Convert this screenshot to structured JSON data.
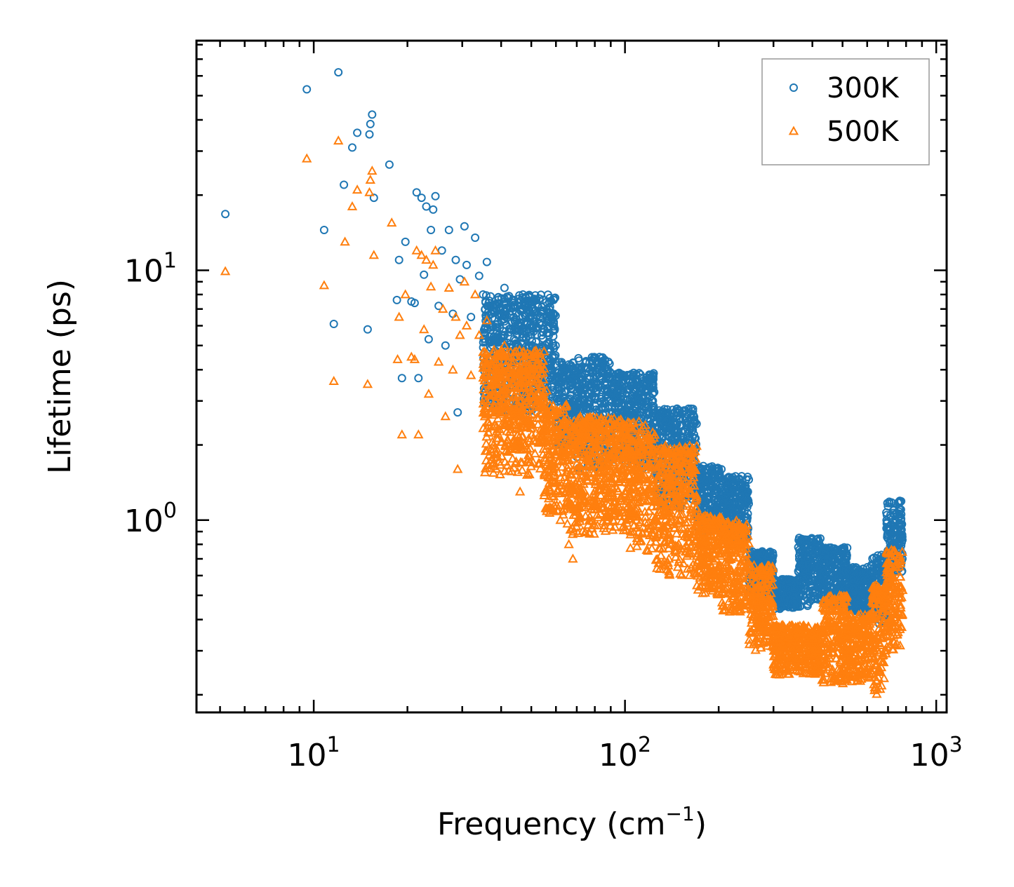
{
  "chart_data": {
    "type": "scatter",
    "xlabel": "Frequency",
    "xlabel_unit": "(cm",
    "xlabel_unit_sup": "−1",
    "xlabel_unit_close": ")",
    "ylabel": "Lifetime (ps)",
    "xscale": "log",
    "yscale": "log",
    "xlim": [
      4.2,
      1080
    ],
    "ylim": [
      0.17,
      83
    ],
    "x_ticks": [
      {
        "value": 10,
        "base": "10",
        "exp": "1"
      },
      {
        "value": 100,
        "base": "10",
        "exp": "2"
      },
      {
        "value": 1000,
        "base": "10",
        "exp": "3"
      }
    ],
    "y_ticks": [
      {
        "value": 1,
        "base": "10",
        "exp": "0"
      },
      {
        "value": 10,
        "base": "10",
        "exp": "1"
      }
    ],
    "legend_position": "top-right",
    "series": [
      {
        "name": "300K",
        "marker": "circle",
        "color": "#1f77b4",
        "points": [
          [
            5.2,
            16.8
          ],
          [
            9.5,
            53.0
          ],
          [
            10.8,
            14.5
          ],
          [
            11.6,
            6.1
          ],
          [
            12.0,
            62.0
          ],
          [
            12.5,
            22.0
          ],
          [
            13.3,
            31.0
          ],
          [
            13.8,
            35.5
          ],
          [
            14.9,
            5.8
          ],
          [
            15.1,
            35.0
          ],
          [
            15.2,
            38.5
          ],
          [
            15.4,
            42.0
          ],
          [
            15.6,
            19.5
          ],
          [
            17.5,
            26.5
          ],
          [
            18.5,
            7.6
          ],
          [
            18.8,
            11.0
          ],
          [
            19.2,
            3.7
          ],
          [
            19.7,
            13.0
          ],
          [
            20.6,
            7.5
          ],
          [
            21.1,
            7.4
          ],
          [
            21.4,
            20.5
          ],
          [
            21.7,
            3.7
          ],
          [
            22.2,
            19.5
          ],
          [
            22.6,
            9.6
          ],
          [
            23.0,
            18.0
          ],
          [
            23.4,
            5.3
          ],
          [
            23.8,
            14.5
          ],
          [
            24.2,
            17.5
          ],
          [
            24.6,
            19.8
          ],
          [
            25.2,
            7.2
          ],
          [
            25.8,
            12.0
          ],
          [
            26.5,
            5.0
          ],
          [
            27.2,
            14.5
          ],
          [
            28.0,
            6.7
          ],
          [
            28.6,
            11.0
          ],
          [
            29.0,
            2.7
          ],
          [
            29.5,
            9.2
          ],
          [
            30.5,
            15.0
          ],
          [
            31.0,
            10.5
          ],
          [
            32.0,
            6.5
          ],
          [
            33.0,
            13.5
          ],
          [
            34.0,
            9.5
          ],
          [
            35.0,
            8.0
          ],
          [
            36.0,
            10.8
          ],
          [
            37.5,
            7.2
          ],
          [
            38.0,
            2.9
          ],
          [
            39.5,
            6.6
          ],
          [
            41.0,
            8.5
          ],
          [
            42.0,
            3.6
          ],
          [
            44.0,
            5.3
          ],
          [
            46.0,
            4.9
          ],
          [
            47.0,
            8.0
          ],
          [
            49.0,
            4.3
          ],
          [
            52.0,
            4.9
          ],
          [
            56.0,
            5.6
          ],
          [
            60.0,
            3.6
          ],
          [
            64.0,
            4.1
          ]
        ],
        "bands": [
          {
            "x_from": 35,
            "x_to": 60,
            "y_low": 2.7,
            "y_high": 8.0
          },
          {
            "x_from": 60,
            "x_to": 70,
            "y_low": 2.0,
            "y_high": 4.3
          },
          {
            "x_from": 70,
            "x_to": 90,
            "y_low": 1.6,
            "y_high": 4.5
          },
          {
            "x_from": 90,
            "x_to": 125,
            "y_low": 1.6,
            "y_high": 3.9
          },
          {
            "x_from": 125,
            "x_to": 170,
            "y_low": 1.1,
            "y_high": 2.8
          },
          {
            "x_from": 170,
            "x_to": 205,
            "y_low": 0.9,
            "y_high": 1.65
          },
          {
            "x_from": 205,
            "x_to": 250,
            "y_low": 0.8,
            "y_high": 1.5
          },
          {
            "x_from": 250,
            "x_to": 300,
            "y_low": 0.5,
            "y_high": 0.75
          },
          {
            "x_from": 300,
            "x_to": 360,
            "y_low": 0.44,
            "y_high": 0.58
          },
          {
            "x_from": 360,
            "x_to": 430,
            "y_low": 0.45,
            "y_high": 0.85
          },
          {
            "x_from": 430,
            "x_to": 520,
            "y_low": 0.45,
            "y_high": 0.78
          },
          {
            "x_from": 520,
            "x_to": 620,
            "y_low": 0.42,
            "y_high": 0.65
          },
          {
            "x_from": 620,
            "x_to": 690,
            "y_low": 0.38,
            "y_high": 0.73
          },
          {
            "x_from": 690,
            "x_to": 780,
            "y_low": 0.6,
            "y_high": 1.2
          }
        ]
      },
      {
        "name": "500K",
        "marker": "triangle",
        "color": "#ff7f0e",
        "points": [
          [
            5.2,
            9.9
          ],
          [
            9.5,
            28.0
          ],
          [
            10.8,
            8.7
          ],
          [
            11.6,
            3.6
          ],
          [
            12.0,
            33.0
          ],
          [
            12.6,
            13.0
          ],
          [
            13.3,
            18.0
          ],
          [
            13.8,
            21.0
          ],
          [
            14.9,
            3.5
          ],
          [
            15.1,
            20.5
          ],
          [
            15.2,
            23.0
          ],
          [
            15.4,
            25.0
          ],
          [
            15.6,
            11.5
          ],
          [
            17.8,
            15.5
          ],
          [
            18.6,
            4.4
          ],
          [
            18.8,
            6.5
          ],
          [
            19.2,
            2.2
          ],
          [
            19.7,
            8.0
          ],
          [
            20.6,
            4.5
          ],
          [
            21.1,
            4.4
          ],
          [
            21.4,
            12.0
          ],
          [
            21.7,
            2.2
          ],
          [
            22.2,
            11.5
          ],
          [
            22.6,
            5.8
          ],
          [
            23.0,
            11.0
          ],
          [
            23.4,
            3.2
          ],
          [
            23.8,
            8.6
          ],
          [
            24.2,
            10.5
          ],
          [
            24.6,
            12.0
          ],
          [
            25.2,
            4.3
          ],
          [
            26.0,
            7.0
          ],
          [
            26.5,
            2.6
          ],
          [
            27.2,
            8.5
          ],
          [
            28.0,
            4.0
          ],
          [
            28.6,
            6.5
          ],
          [
            29.0,
            1.6
          ],
          [
            29.5,
            5.5
          ],
          [
            30.5,
            9.0
          ],
          [
            31.0,
            6.0
          ],
          [
            32.0,
            3.8
          ],
          [
            33.0,
            8.0
          ],
          [
            34.0,
            5.5
          ],
          [
            35.0,
            4.7
          ],
          [
            36.0,
            6.3
          ],
          [
            37.5,
            4.2
          ],
          [
            38.0,
            1.7
          ],
          [
            39.5,
            3.9
          ],
          [
            41.0,
            5.0
          ],
          [
            42.0,
            2.1
          ],
          [
            44.0,
            3.1
          ],
          [
            46.0,
            1.3
          ],
          [
            47.0,
            4.7
          ],
          [
            49.0,
            2.5
          ],
          [
            52.0,
            2.9
          ],
          [
            56.0,
            3.3
          ],
          [
            60.0,
            2.1
          ],
          [
            62.0,
            1.0
          ],
          [
            66.0,
            0.8
          ],
          [
            68.0,
            0.7
          ]
        ],
        "bands": [
          {
            "x_from": 35,
            "x_to": 55,
            "y_low": 1.5,
            "y_high": 4.8
          },
          {
            "x_from": 55,
            "x_to": 65,
            "y_low": 1.05,
            "y_high": 2.9
          },
          {
            "x_from": 65,
            "x_to": 80,
            "y_low": 0.85,
            "y_high": 2.6
          },
          {
            "x_from": 80,
            "x_to": 100,
            "y_low": 0.9,
            "y_high": 2.6
          },
          {
            "x_from": 100,
            "x_to": 125,
            "y_low": 0.75,
            "y_high": 2.5
          },
          {
            "x_from": 125,
            "x_to": 170,
            "y_low": 0.6,
            "y_high": 2.0
          },
          {
            "x_from": 170,
            "x_to": 205,
            "y_low": 0.5,
            "y_high": 1.05
          },
          {
            "x_from": 205,
            "x_to": 250,
            "y_low": 0.42,
            "y_high": 1.0
          },
          {
            "x_from": 250,
            "x_to": 300,
            "y_low": 0.3,
            "y_high": 0.66
          },
          {
            "x_from": 300,
            "x_to": 360,
            "y_low": 0.24,
            "y_high": 0.38
          },
          {
            "x_from": 360,
            "x_to": 430,
            "y_low": 0.24,
            "y_high": 0.38
          },
          {
            "x_from": 430,
            "x_to": 520,
            "y_low": 0.22,
            "y_high": 0.5
          },
          {
            "x_from": 520,
            "x_to": 620,
            "y_low": 0.22,
            "y_high": 0.42
          },
          {
            "x_from": 620,
            "x_to": 690,
            "y_low": 0.2,
            "y_high": 0.55
          },
          {
            "x_from": 690,
            "x_to": 780,
            "y_low": 0.3,
            "y_high": 0.76
          }
        ]
      }
    ]
  }
}
